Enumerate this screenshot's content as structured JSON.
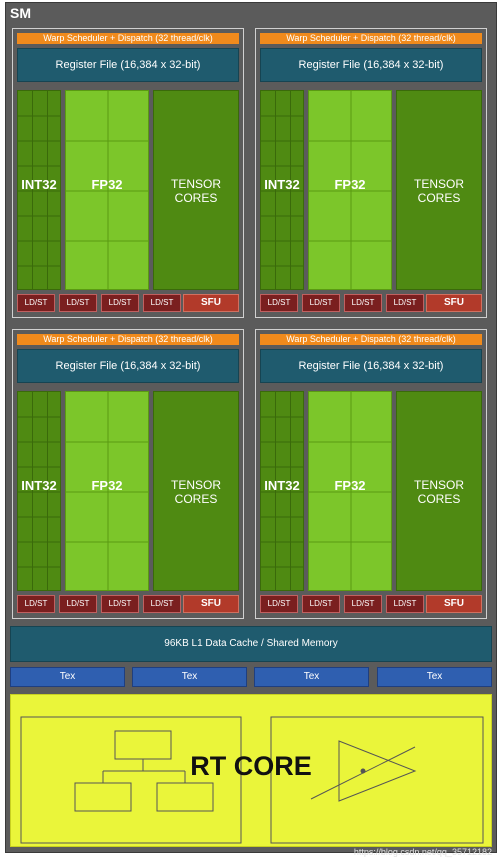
{
  "sm_label": "SM",
  "processing_blocks": [
    {
      "warp": "Warp Scheduler + Dispatch (32 thread/clk)",
      "register_file": "Register File (16,384 x 32-bit)",
      "int32": "INT32",
      "fp32": "FP32",
      "tensor_line1": "TENSOR",
      "tensor_line2": "CORES",
      "ldst": [
        "LD/ST",
        "LD/ST",
        "LD/ST",
        "LD/ST"
      ],
      "sfu": "SFU"
    },
    {
      "warp": "Warp Scheduler + Dispatch (32 thread/clk)",
      "register_file": "Register File (16,384 x 32-bit)",
      "int32": "INT32",
      "fp32": "FP32",
      "tensor_line1": "TENSOR",
      "tensor_line2": "CORES",
      "ldst": [
        "LD/ST",
        "LD/ST",
        "LD/ST",
        "LD/ST"
      ],
      "sfu": "SFU"
    },
    {
      "warp": "Warp Scheduler + Dispatch (32 thread/clk)",
      "register_file": "Register File (16,384 x 32-bit)",
      "int32": "INT32",
      "fp32": "FP32",
      "tensor_line1": "TENSOR",
      "tensor_line2": "CORES",
      "ldst": [
        "LD/ST",
        "LD/ST",
        "LD/ST",
        "LD/ST"
      ],
      "sfu": "SFU"
    },
    {
      "warp": "Warp Scheduler + Dispatch (32 thread/clk)",
      "register_file": "Register File (16,384 x 32-bit)",
      "int32": "INT32",
      "fp32": "FP32",
      "tensor_line1": "TENSOR",
      "tensor_line2": "CORES",
      "ldst": [
        "LD/ST",
        "LD/ST",
        "LD/ST",
        "LD/ST"
      ],
      "sfu": "SFU"
    }
  ],
  "l1_cache": "96KB L1 Data Cache / Shared Memory",
  "tex_units": [
    "Tex",
    "Tex",
    "Tex",
    "Tex"
  ],
  "rt_core": "RT CORE",
  "watermark": "https://blog.csdn.net/qq_35712182",
  "colors": {
    "warp": "#f08a1c",
    "register": "#1f5b6e",
    "int32": "#4f8a12",
    "fp32": "#7cc62a",
    "tensor": "#4f8a12",
    "ldst": "#7a1f1f",
    "sfu": "#b23a2a",
    "tex": "#2f5fb0",
    "rt": "#eaf53a"
  },
  "icons": {
    "rt_left": "bvh-tree-icon",
    "rt_right": "ray-triangle-icon"
  }
}
